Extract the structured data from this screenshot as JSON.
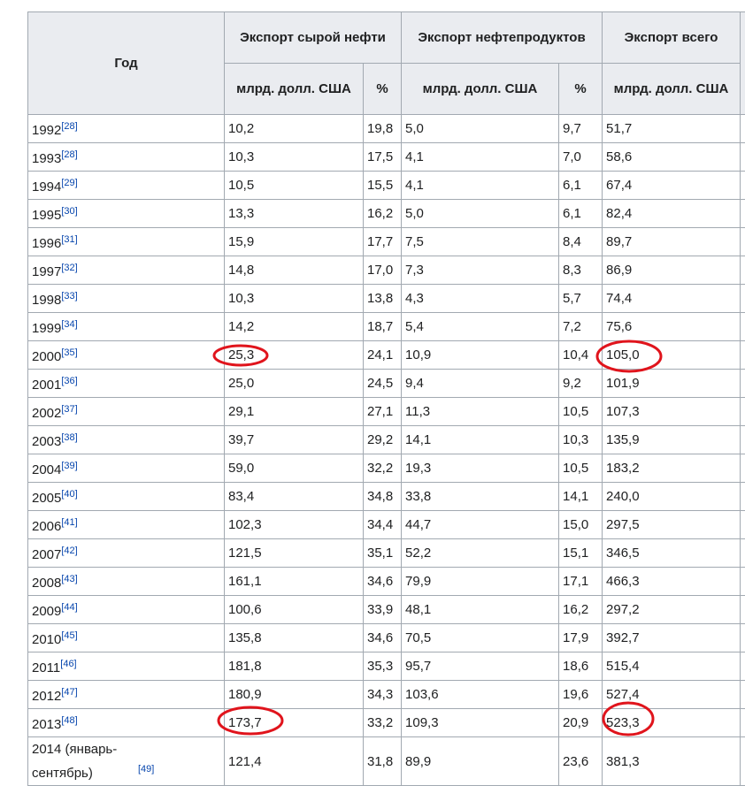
{
  "table": {
    "header": {
      "year": "Год",
      "crude": "Экспорт сырой нефти",
      "products": "Экспорт нефтепродуктов",
      "total": "Экспорт всего",
      "unit_crude": "млрд. долл. США",
      "pct_crude": "%",
      "unit_products": "млрд. долл. США",
      "pct_products": "%",
      "unit_total": "млрд. долл. США"
    },
    "rows": [
      [
        "1992",
        "[28]",
        "10,2",
        "19,8",
        "5,0",
        "9,7",
        "51,7"
      ],
      [
        "1993",
        "[28]",
        "10,3",
        "17,5",
        "4,1",
        "7,0",
        "58,6"
      ],
      [
        "1994",
        "[29]",
        "10,5",
        "15,5",
        "4,1",
        "6,1",
        "67,4"
      ],
      [
        "1995",
        "[30]",
        "13,3",
        "16,2",
        "5,0",
        "6,1",
        "82,4"
      ],
      [
        "1996",
        "[31]",
        "15,9",
        "17,7",
        "7,5",
        "8,4",
        "89,7"
      ],
      [
        "1997",
        "[32]",
        "14,8",
        "17,0",
        "7,3",
        "8,3",
        "86,9"
      ],
      [
        "1998",
        "[33]",
        "10,3",
        "13,8",
        "4,3",
        "5,7",
        "74,4"
      ],
      [
        "1999",
        "[34]",
        "14,2",
        "18,7",
        "5,4",
        "7,2",
        "75,6"
      ],
      [
        "2000",
        "[35]",
        "25,3",
        "24,1",
        "10,9",
        "10,4",
        "105,0"
      ],
      [
        "2001",
        "[36]",
        "25,0",
        "24,5",
        "9,4",
        "9,2",
        "101,9"
      ],
      [
        "2002",
        "[37]",
        "29,1",
        "27,1",
        "11,3",
        "10,5",
        "107,3"
      ],
      [
        "2003",
        "[38]",
        "39,7",
        "29,2",
        "14,1",
        "10,3",
        "135,9"
      ],
      [
        "2004",
        "[39]",
        "59,0",
        "32,2",
        "19,3",
        "10,5",
        "183,2"
      ],
      [
        "2005",
        "[40]",
        "83,4",
        "34,8",
        "33,8",
        "14,1",
        "240,0"
      ],
      [
        "2006",
        "[41]",
        "102,3",
        "34,4",
        "44,7",
        "15,0",
        "297,5"
      ],
      [
        "2007",
        "[42]",
        "121,5",
        "35,1",
        "52,2",
        "15,1",
        "346,5"
      ],
      [
        "2008",
        "[43]",
        "161,1",
        "34,6",
        "79,9",
        "17,1",
        "466,3"
      ],
      [
        "2009",
        "[44]",
        "100,6",
        "33,9",
        "48,1",
        "16,2",
        "297,2"
      ],
      [
        "2010",
        "[45]",
        "135,8",
        "34,6",
        "70,5",
        "17,9",
        "392,7"
      ],
      [
        "2011",
        "[46]",
        "181,8",
        "35,3",
        "95,7",
        "18,6",
        "515,4"
      ],
      [
        "2012",
        "[47]",
        "180,9",
        "34,3",
        "103,6",
        "19,6",
        "527,4"
      ],
      [
        "2013",
        "[48]",
        "173,7",
        "33,2",
        "109,3",
        "20,9",
        "523,3"
      ],
      [
        "2014 (январь-сентябрь)",
        "[49]",
        "121,4",
        "31,8",
        "89,9",
        "23,6",
        "381,3"
      ]
    ]
  }
}
